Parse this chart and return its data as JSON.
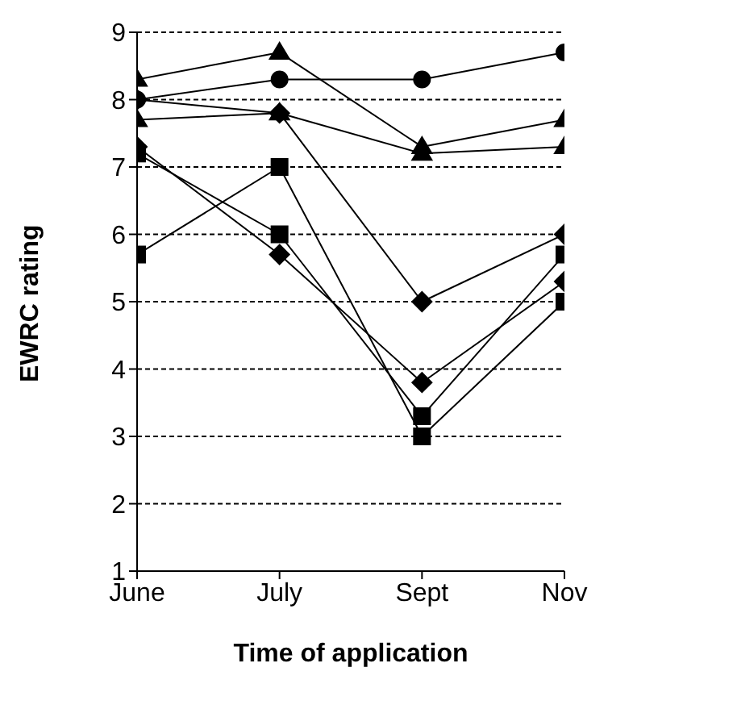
{
  "chart_data": {
    "type": "line",
    "xlabel": "Time of application",
    "ylabel": "EWRC rating",
    "categories": [
      "June",
      "July",
      "Sept",
      "Nov"
    ],
    "series": [
      {
        "color": "#000000",
        "marker": "diamond",
        "values": [
          8.0,
          7.8,
          5.0,
          6.0
        ]
      },
      {
        "color": "#000000",
        "marker": "triangle",
        "values": [
          8.3,
          8.7,
          7.3,
          7.7
        ]
      },
      {
        "color": "#000000",
        "marker": "circle",
        "values": [
          8.0,
          8.3,
          8.3,
          8.7
        ]
      },
      {
        "color": "#000000",
        "marker": "triangle",
        "values": [
          7.7,
          7.8,
          7.2,
          7.3
        ]
      },
      {
        "color": "#000000",
        "marker": "square",
        "values": [
          7.2,
          6.0,
          3.3,
          5.7
        ]
      },
      {
        "color": "#000000",
        "marker": "diamond",
        "values": [
          7.3,
          5.7,
          3.8,
          5.3
        ]
      },
      {
        "color": "#000000",
        "marker": "square",
        "values": [
          5.7,
          7.0,
          3.0,
          5.0
        ]
      }
    ],
    "ylim": [
      1,
      9
    ],
    "yticks": [
      1,
      2,
      3,
      4,
      5,
      6,
      7,
      8,
      9
    ],
    "grid": "y",
    "line_style": "solid"
  }
}
